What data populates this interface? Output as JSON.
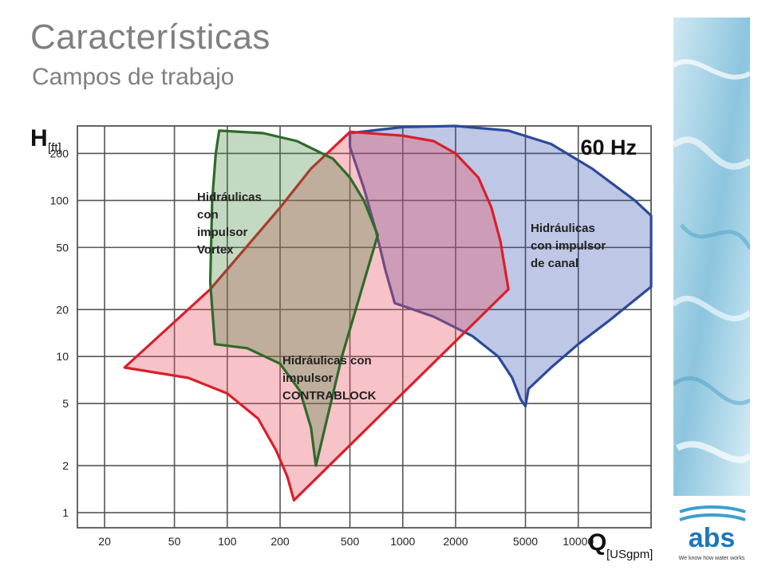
{
  "page": {
    "title": "Características",
    "subtitle": "Campos de trabajo"
  },
  "logo": {
    "text": "abs",
    "tagline": "We know how water works"
  },
  "colors": {
    "grid": "#555555",
    "vortex": "#2e6b28",
    "contrablock": "#d8202a",
    "canal": "#2b4a9a"
  },
  "chart_data": {
    "type": "area",
    "scale": "log-log",
    "frequency_label": "60 Hz",
    "y_axis": {
      "symbol": "H",
      "unit": "[ft]",
      "ticks": [
        1,
        2,
        5,
        10,
        20,
        50,
        100,
        200
      ],
      "range": [
        0.8,
        300
      ]
    },
    "x_axis": {
      "symbol": "Q",
      "unit": "[USgpm]",
      "ticks": [
        20,
        50,
        100,
        200,
        500,
        1000,
        2000,
        5000,
        10000
      ],
      "range": [
        14,
        26000
      ]
    },
    "series": [
      {
        "name": "Hidráulicas con impulsor de canal",
        "label_lines": [
          "Hidráulicas",
          "con impulsor",
          "de canal"
        ],
        "color": "#2b4a9a",
        "fill": "rgba(40,70,170,0.30)",
        "points": [
          [
            500,
            270
          ],
          [
            1000,
            295
          ],
          [
            2000,
            300
          ],
          [
            4000,
            280
          ],
          [
            7000,
            230
          ],
          [
            12000,
            160
          ],
          [
            21000,
            100
          ],
          [
            26000,
            80
          ],
          [
            26000,
            28
          ],
          [
            15000,
            17
          ],
          [
            10000,
            12
          ],
          [
            7000,
            8.5
          ],
          [
            5200,
            6.2
          ],
          [
            5000,
            4.8
          ],
          [
            4700,
            5.3
          ],
          [
            4200,
            7.3
          ],
          [
            3500,
            10
          ],
          [
            2500,
            13.5
          ],
          [
            1500,
            18
          ],
          [
            900,
            22
          ],
          [
            800,
            35
          ],
          [
            700,
            65
          ],
          [
            600,
            120
          ],
          [
            500,
            220
          ]
        ]
      },
      {
        "name": "Hidráulicas con impulsor CONTRABLOCK",
        "label_lines": [
          "Hidráulicas con",
          "impulsor",
          "CONTRABLOCK"
        ],
        "color": "#d8202a",
        "fill": "rgba(235,80,100,0.35)",
        "points": [
          [
            26,
            8.5
          ],
          [
            80,
            27
          ],
          [
            200,
            90
          ],
          [
            300,
            160
          ],
          [
            500,
            275
          ],
          [
            1000,
            260
          ],
          [
            1500,
            240
          ],
          [
            2000,
            200
          ],
          [
            2700,
            140
          ],
          [
            3200,
            90
          ],
          [
            3600,
            55
          ],
          [
            4000,
            27
          ],
          [
            240,
            1.2
          ],
          [
            220,
            1.7
          ],
          [
            190,
            2.5
          ],
          [
            150,
            4
          ],
          [
            100,
            5.8
          ],
          [
            60,
            7.3
          ]
        ]
      },
      {
        "name": "Hidráulicas con impulsor Vortex",
        "label_lines": [
          "Hidráulicas",
          "con",
          "impulsor",
          "Vortex"
        ],
        "color": "#2e6b28",
        "fill": "rgba(60,130,50,0.30)",
        "points": [
          [
            90,
            280
          ],
          [
            160,
            270
          ],
          [
            250,
            240
          ],
          [
            400,
            185
          ],
          [
            500,
            140
          ],
          [
            600,
            100
          ],
          [
            720,
            60
          ],
          [
            600,
            30
          ],
          [
            450,
            10
          ],
          [
            320,
            2
          ],
          [
            300,
            3.5
          ],
          [
            260,
            6
          ],
          [
            200,
            9
          ],
          [
            130,
            11.3
          ],
          [
            85,
            12
          ],
          [
            80,
            30
          ],
          [
            82,
            100
          ],
          [
            86,
            200
          ]
        ]
      }
    ]
  }
}
